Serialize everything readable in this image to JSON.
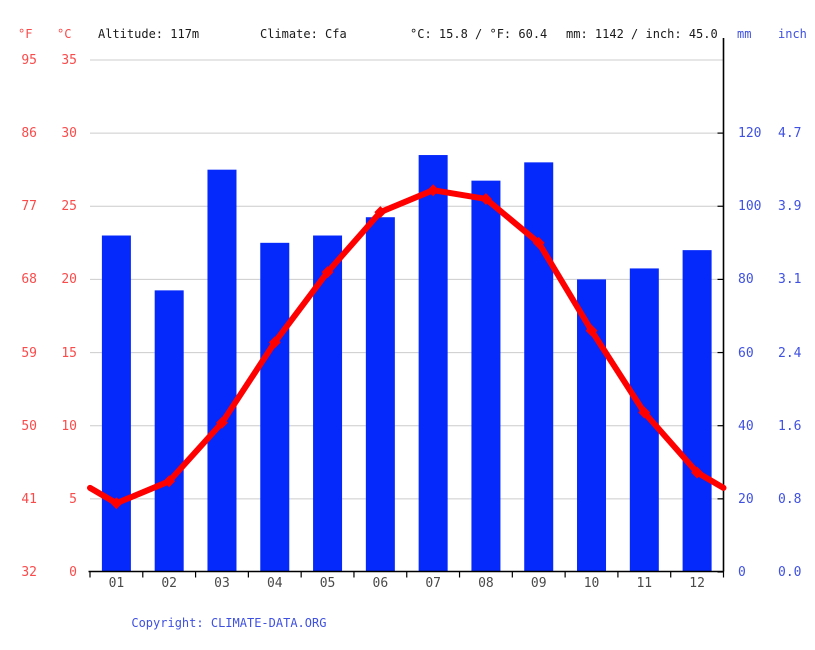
{
  "header": {
    "f_unit": "°F",
    "c_unit": "°C",
    "altitude": "Altitude: 117m",
    "climate": "Climate: Cfa",
    "temp_summary": "°C: 15.8 / °F: 60.4",
    "precip_summary": "mm: 1142 / inch: 45.0",
    "mm_unit": "mm",
    "inch_unit": "inch"
  },
  "axes": {
    "left_f_ticks": [
      "95",
      "86",
      "77",
      "68",
      "59",
      "50",
      "41",
      "32"
    ],
    "left_c_ticks": [
      "35",
      "30",
      "25",
      "20",
      "15",
      "10",
      "5",
      "0"
    ],
    "right_mm_ticks": [
      "120",
      "100",
      "80",
      "60",
      "40",
      "20",
      "0"
    ],
    "right_inch_ticks": [
      "4.7",
      "3.9",
      "3.1",
      "2.4",
      "1.6",
      "0.8",
      "0.0"
    ]
  },
  "chart_data": {
    "type": "bar+line",
    "categories": [
      "01",
      "02",
      "03",
      "04",
      "05",
      "06",
      "07",
      "08",
      "09",
      "10",
      "11",
      "12"
    ],
    "series": [
      {
        "name": "precipitation_mm",
        "type": "bar",
        "values": [
          92,
          77,
          110,
          90,
          92,
          97,
          114,
          107,
          112,
          80,
          83,
          88
        ]
      },
      {
        "name": "temperature_c",
        "type": "line",
        "values": [
          4.7,
          6.2,
          10.2,
          15.7,
          20.5,
          24.6,
          26.1,
          25.5,
          22.5,
          16.5,
          10.9,
          6.8
        ],
        "edge_value": 5.75
      }
    ],
    "title": "",
    "xlabel": "",
    "ylabel_left": "°C / °F",
    "ylabel_right": "mm / inch",
    "temp_axis": {
      "min": 0,
      "max": 35,
      "ticks": [
        0,
        5,
        10,
        15,
        20,
        25,
        30,
        35
      ]
    },
    "precip_axis": {
      "min": 0,
      "max": 120,
      "ticks": [
        0,
        20,
        40,
        60,
        80,
        100,
        120
      ]
    },
    "grid": true,
    "legend": "none"
  },
  "colors": {
    "bar_blue": "#0528fb",
    "line_red": "#ff0000",
    "red_label": "#fa4b4b",
    "blue_label": "#3f51e1",
    "grid": "#cccccc",
    "axis": "#000000",
    "month_label": "#4a4a4a"
  },
  "footer": {
    "copyright_label": "Copyright: ",
    "copyright_link": "CLIMATE-DATA.ORG"
  }
}
